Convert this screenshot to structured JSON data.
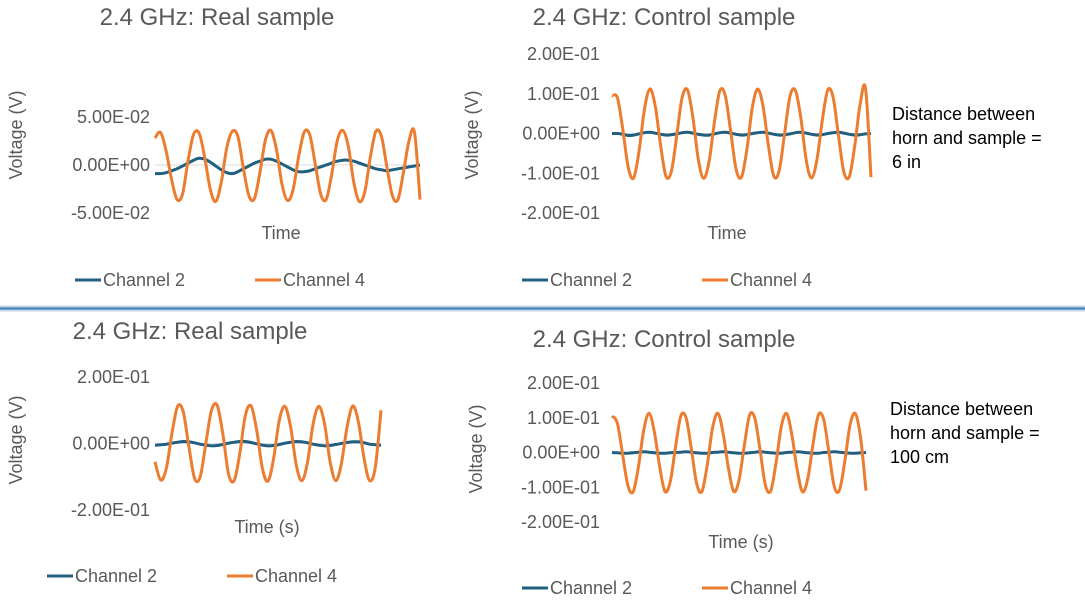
{
  "colors": {
    "channel2": "#1f5f7f",
    "channel4": "#ec7c30",
    "axis": "#d9d9d9",
    "text": "#595959",
    "divider": "#2a6fb4"
  },
  "chart_data": [
    {
      "type": "line",
      "title": "2.4 GHz: Real sample",
      "xlabel": "Time",
      "ylabel": "Voltage (V)",
      "ylim": [
        -0.05,
        0.05
      ],
      "yticks": [
        0.05,
        0,
        -0.05
      ],
      "ytick_labels": [
        "5.00E-02",
        "0.00E+00",
        "-5.00E-02"
      ],
      "grid": "horizontal",
      "legend": "bottom",
      "x": {
        "start": 0,
        "end": 48,
        "step": 1
      },
      "series": [
        {
          "name": "Channel 2",
          "color": "#1f5f7f",
          "values": [
            -0.009,
            -0.009,
            -0.008,
            -0.006,
            -0.004,
            -0.001,
            0.002,
            0.005,
            0.007,
            0.006,
            0.003,
            -0.001,
            -0.005,
            -0.008,
            -0.009,
            -0.007,
            -0.004,
            -0.001,
            0.002,
            0.004,
            0.006,
            0.006,
            0.004,
            0.001,
            -0.002,
            -0.005,
            -0.007,
            -0.007,
            -0.006,
            -0.004,
            -0.002,
            0.0,
            0.002,
            0.004,
            0.005,
            0.005,
            0.004,
            0.002,
            -0.0,
            -0.002,
            -0.004,
            -0.005,
            -0.006,
            -0.005,
            -0.004,
            -0.003,
            -0.002,
            -0.001,
            0.0
          ]
        },
        {
          "name": "Channel 4",
          "color": "#ec7c30",
          "values": [
            0.028,
            0.034,
            0.015,
            -0.015,
            -0.036,
            -0.03,
            0.005,
            0.032,
            0.033,
            0.008,
            -0.025,
            -0.038,
            -0.018,
            0.018,
            0.035,
            0.03,
            -0.003,
            -0.032,
            -0.035,
            -0.008,
            0.026,
            0.036,
            0.016,
            -0.02,
            -0.037,
            -0.026,
            0.008,
            0.034,
            0.032,
            0.002,
            -0.03,
            -0.036,
            -0.01,
            0.025,
            0.036,
            0.02,
            -0.018,
            -0.038,
            -0.028,
            0.008,
            0.035,
            0.03,
            -0.002,
            -0.032,
            -0.036,
            -0.008,
            0.025,
            0.034,
            -0.036
          ]
        }
      ]
    },
    {
      "type": "line",
      "title": "2.4 GHz: Control sample",
      "xlabel": "Time",
      "ylabel": "Voltage (V)",
      "ylim": [
        -0.2,
        0.2
      ],
      "yticks": [
        0.2,
        0.1,
        0,
        -0.1,
        -0.2
      ],
      "ytick_labels": [
        "2.00E-01",
        "1.00E-01",
        "0.00E+00",
        "-1.00E-01",
        "-2.00E-01"
      ],
      "grid": "horizontal",
      "legend": "bottom",
      "x": {
        "start": 0,
        "end": 48,
        "step": 1
      },
      "series": [
        {
          "name": "Channel 2",
          "color": "#1f5f7f",
          "values": [
            0.0,
            0.0,
            -0.002,
            -0.005,
            -0.004,
            -0.001,
            0.002,
            0.003,
            0.001,
            -0.002,
            -0.004,
            -0.003,
            -0.001,
            0.002,
            0.003,
            0.001,
            -0.002,
            -0.004,
            -0.004,
            -0.001,
            0.002,
            0.003,
            0.001,
            -0.002,
            -0.004,
            -0.003,
            0.0,
            0.002,
            0.003,
            0.001,
            -0.002,
            -0.004,
            -0.003,
            -0.001,
            0.002,
            0.003,
            0.001,
            -0.002,
            -0.004,
            -0.003,
            0.0,
            0.002,
            0.003,
            0.001,
            -0.002,
            -0.004,
            -0.003,
            -0.001,
            0.0
          ]
        },
        {
          "name": "Channel 4",
          "color": "#ec7c30",
          "values": [
            0.095,
            0.09,
            0.01,
            -0.085,
            -0.112,
            -0.045,
            0.06,
            0.112,
            0.07,
            -0.03,
            -0.108,
            -0.095,
            -0.005,
            0.09,
            0.11,
            0.04,
            -0.065,
            -0.113,
            -0.07,
            0.03,
            0.108,
            0.095,
            0.005,
            -0.09,
            -0.11,
            -0.04,
            0.065,
            0.112,
            0.068,
            -0.032,
            -0.108,
            -0.092,
            0.002,
            0.095,
            0.108,
            0.038,
            -0.068,
            -0.112,
            -0.065,
            0.035,
            0.11,
            0.09,
            -0.008,
            -0.098,
            -0.108,
            -0.03,
            0.075,
            0.112,
            -0.11
          ]
        }
      ]
    },
    {
      "type": "line",
      "title": "2.4 GHz: Real sample",
      "xlabel": "Time (s)",
      "ylabel": "Voltage (V)",
      "ylim": [
        -0.2,
        0.2
      ],
      "yticks": [
        0.2,
        0,
        -0.2
      ],
      "ytick_labels": [
        "2.00E-01",
        "0.00E+00",
        "-2.00E-01"
      ],
      "grid": "horizontal",
      "legend": "bottom",
      "x": {
        "start": 0,
        "end": 40,
        "step": 1
      },
      "series": [
        {
          "name": "Channel 2",
          "color": "#1f5f7f",
          "values": [
            -0.005,
            -0.004,
            -0.002,
            0.001,
            0.004,
            0.006,
            0.005,
            0.002,
            -0.002,
            -0.005,
            -0.007,
            -0.006,
            -0.003,
            0.001,
            0.004,
            0.006,
            0.006,
            0.003,
            -0.001,
            -0.005,
            -0.007,
            -0.006,
            -0.003,
            0.001,
            0.004,
            0.006,
            0.005,
            0.002,
            -0.002,
            -0.005,
            -0.007,
            -0.006,
            -0.003,
            0.0,
            0.003,
            0.005,
            0.005,
            0.002,
            -0.002,
            -0.004,
            -0.005
          ]
        },
        {
          "name": "Channel 4",
          "color": "#ec7c30",
          "values": [
            -0.055,
            -0.11,
            -0.075,
            0.03,
            0.112,
            0.095,
            -0.01,
            -0.105,
            -0.1,
            0.0,
            0.1,
            0.115,
            0.03,
            -0.09,
            -0.112,
            -0.03,
            0.085,
            0.113,
            0.04,
            -0.075,
            -0.113,
            -0.045,
            0.07,
            0.112,
            0.05,
            -0.065,
            -0.112,
            -0.055,
            0.06,
            0.112,
            0.06,
            -0.055,
            -0.112,
            -0.06,
            0.05,
            0.113,
            0.065,
            -0.045,
            -0.112,
            -0.07,
            0.1
          ]
        }
      ]
    },
    {
      "type": "line",
      "title": "2.4 GHz: Control sample",
      "xlabel": "Time (s)",
      "ylabel": "Voltage (V)",
      "ylim": [
        -0.2,
        0.2
      ],
      "yticks": [
        0.2,
        0.1,
        0,
        -0.1,
        -0.2
      ],
      "ytick_labels": [
        "2.00E-01",
        "1.00E-01",
        "0.00E+00",
        "-1.00E-01",
        "-2.00E-01"
      ],
      "grid": "horizontal",
      "legend": "bottom",
      "x": {
        "start": 0,
        "end": 48,
        "step": 1
      },
      "series": [
        {
          "name": "Channel 2",
          "color": "#1f5f7f",
          "values": [
            0.0,
            -0.001,
            -0.002,
            -0.002,
            -0.001,
            0.001,
            0.002,
            0.001,
            -0.001,
            -0.002,
            -0.002,
            -0.001,
            0.0,
            0.001,
            0.002,
            0.001,
            -0.001,
            -0.002,
            -0.002,
            0.0,
            0.001,
            0.002,
            0.001,
            -0.001,
            -0.002,
            -0.002,
            -0.001,
            0.001,
            0.002,
            0.001,
            -0.001,
            -0.002,
            -0.002,
            0.0,
            0.001,
            0.002,
            0.001,
            -0.001,
            -0.002,
            -0.002,
            0.0,
            0.001,
            0.002,
            0.001,
            -0.001,
            -0.002,
            -0.002,
            -0.001,
            0.0
          ]
        },
        {
          "name": "Channel 4",
          "color": "#ec7c30",
          "values": [
            0.105,
            0.085,
            -0.005,
            -0.095,
            -0.113,
            -0.04,
            0.065,
            0.113,
            0.06,
            -0.04,
            -0.112,
            -0.085,
            0.015,
            0.105,
            0.1,
            0.01,
            -0.09,
            -0.112,
            -0.035,
            0.07,
            0.113,
            0.055,
            -0.045,
            -0.112,
            -0.08,
            0.02,
            0.108,
            0.098,
            0.005,
            -0.095,
            -0.11,
            -0.03,
            0.075,
            0.112,
            0.05,
            -0.05,
            -0.113,
            -0.075,
            0.025,
            0.108,
            0.095,
            0.0,
            -0.098,
            -0.108,
            -0.025,
            0.08,
            0.112,
            0.04,
            -0.11
          ]
        }
      ]
    }
  ],
  "notes": [
    {
      "lines": [
        "Distance between",
        "horn and sample =",
        "6 in"
      ]
    },
    {
      "lines": [
        "Distance between",
        "horn and sample =",
        "100 cm"
      ]
    }
  ]
}
